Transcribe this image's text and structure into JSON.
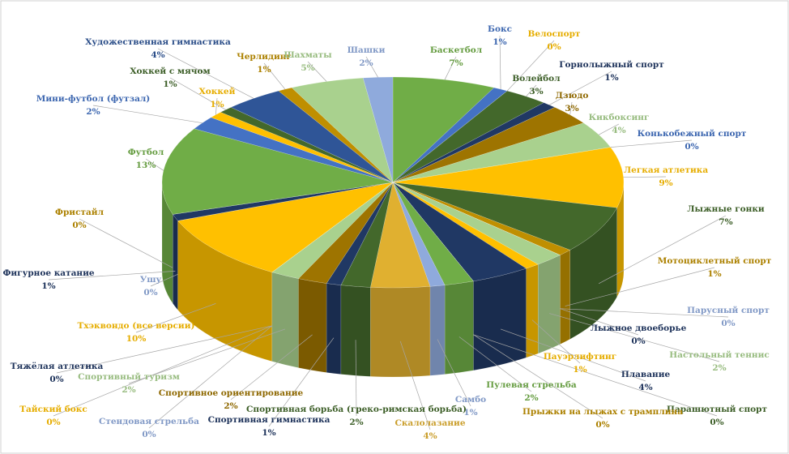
{
  "chart_data": {
    "type": "pie3d",
    "categories": [
      "Баскетбол",
      "Бокс",
      "Велоспорт",
      "Волейбол",
      "Горнолыжный спорт",
      "Дзюдо",
      "Кикбоксинг",
      "Конькобежный спорт",
      "Легкая атлетика",
      "Лыжные гонки",
      "Мотоциклетный спорт",
      "Парусный спорт",
      "Лыжное двоеборье",
      "Настольный теннис",
      "Пауэрлифтинг",
      "Плавание",
      "Парашютный спорт",
      "Прыжки на лыжах с трамплина",
      "Пулевая стрельба",
      "Самбо",
      "Скалолазание",
      "Спортивная борьба (греко-римская борьба)",
      "Спортивная гимнастика",
      "Спортивное ориентирование",
      "Спортивный туризм",
      "Стендовая стрельба",
      "Тайский бокс",
      "Тяжёлая атлетика",
      "Тхэквондо (все версии)",
      "Ушу",
      "Фигурное катание",
      "Фристайл",
      "Футбол",
      "Мини-футбол (футзал)",
      "Хоккей",
      "Хоккей с мячом",
      "Художественная гимнастика",
      "Черлидинг",
      "Шахматы",
      "Шашки"
    ],
    "values": [
      7,
      1,
      0,
      3,
      1,
      3,
      4,
      0,
      9,
      7,
      1,
      0,
      0,
      2,
      1,
      4,
      0,
      0,
      2,
      1,
      4,
      2,
      1,
      2,
      2,
      0,
      0,
      0,
      10,
      0,
      1,
      0,
      13,
      2,
      1,
      1,
      4,
      1,
      5,
      2
    ],
    "value_labels": [
      "7%",
      "1%",
      "0%",
      "3%",
      "1%",
      "3%",
      "4%",
      "0%",
      "9%",
      "7%",
      "1%",
      "0%",
      "0%",
      "2%",
      "1%",
      "4%",
      "0%",
      "0%",
      "2%",
      "1%",
      "4%",
      "2%",
      "1%",
      "2%",
      "2%",
      "0%",
      "0%",
      "0%",
      "10%",
      "0%",
      "1%",
      "0%",
      "13%",
      "2%",
      "1%",
      "1%",
      "4%",
      "1%",
      "5%",
      "2%"
    ],
    "colors": [
      "#70ad47",
      "#4472c4",
      "#ffc000",
      "#43682b",
      "#203864",
      "#9e7400",
      "#a9d18e",
      "#4472c4",
      "#ffc000",
      "#43682b",
      "#bf8f00",
      "#8faadc",
      "#203864",
      "#a9d18e",
      "#ffc000",
      "#203864",
      "#43682b",
      "#bf8f00",
      "#70ad47",
      "#8faadc",
      "#e0b030",
      "#43682b",
      "#203864",
      "#9e7400",
      "#a9d18e",
      "#8faadc",
      "#ffc000",
      "#203864",
      "#ffc000",
      "#8faadc",
      "#203864",
      "#bf8f00",
      "#70ad47",
      "#4472c4",
      "#ffc000",
      "#43682b",
      "#2f5597",
      "#bf8f00",
      "#a9d18e",
      "#8faadc"
    ]
  }
}
